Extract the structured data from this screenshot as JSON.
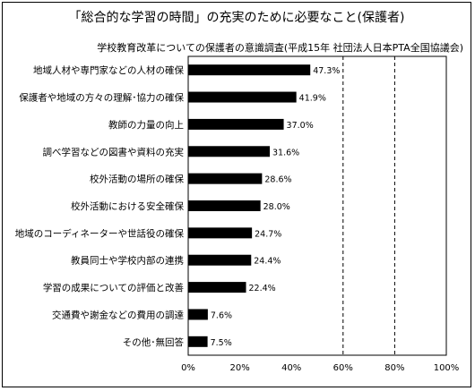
{
  "chart_data": {
    "type": "bar",
    "orientation": "horizontal",
    "title": "「総合的な学習の時間」の充実のために必要なこと(保護者)",
    "subtitle": "学校教育改革についての保護者の意識調査(平成15年 社団法人日本PTA全国協議会)",
    "categories": [
      "地域人材や専門家などの人材の確保",
      "保護者や地域の方々の理解･協力の確保",
      "教師の力量の向上",
      "調べ学習などの図書や資料の充実",
      "校外活動の場所の確保",
      "校外活動における安全確保",
      "地域のコーディネーターや世話役の確保",
      "教員同士や学校内部の連携",
      "学習の成果についての評価と改善",
      "交通費や謝金などの費用の調達",
      "その他･無回答"
    ],
    "values": [
      47.3,
      41.9,
      37.0,
      31.6,
      28.6,
      28.0,
      24.7,
      24.4,
      22.4,
      7.6,
      7.5
    ],
    "value_labels": [
      "47.3%",
      "41.9%",
      "37.0%",
      "31.6%",
      "28.6%",
      "28.0%",
      "24.7%",
      "24.4%",
      "22.4%",
      "7.6%",
      "7.5%"
    ],
    "xlim": [
      0,
      100
    ],
    "xticks": [
      "0%",
      "20%",
      "40%",
      "60%",
      "80%",
      "100%"
    ],
    "bar_color": "#000000",
    "grid": "vertical dashed at 60% and 80%"
  }
}
